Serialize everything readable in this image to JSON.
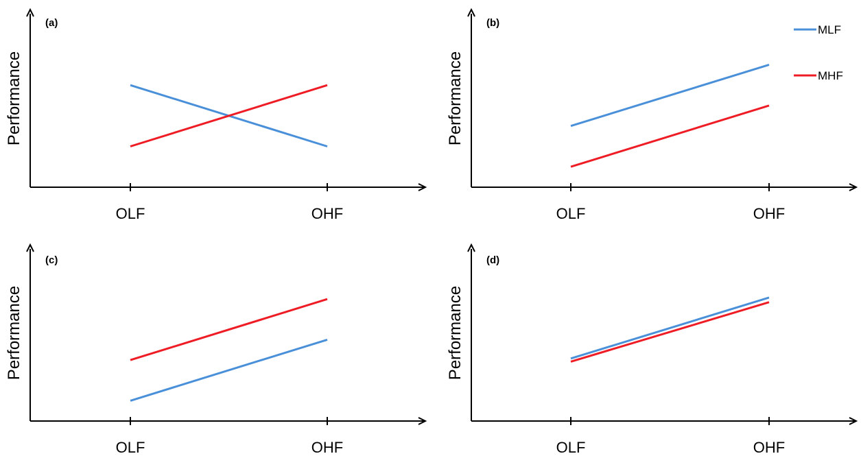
{
  "chart_data": [
    {
      "panel": "(a)",
      "type": "line",
      "categories": [
        "OLF",
        "OHF"
      ],
      "ylabel": "Performance",
      "ylim": [
        0,
        1
      ],
      "series": [
        {
          "name": "MLF",
          "color": "#4a90d9",
          "values": [
            0.65,
            0.26
          ]
        },
        {
          "name": "MHF",
          "color": "#ee1c25",
          "values": [
            0.26,
            0.65
          ]
        }
      ]
    },
    {
      "panel": "(b)",
      "type": "line",
      "categories": [
        "OLF",
        "OHF"
      ],
      "ylabel": "Performance",
      "ylim": [
        0,
        1
      ],
      "series": [
        {
          "name": "MLF",
          "color": "#4a90d9",
          "values": [
            0.39,
            0.78
          ]
        },
        {
          "name": "MHF",
          "color": "#ee1c25",
          "values": [
            0.13,
            0.52
          ]
        }
      ]
    },
    {
      "panel": "(c)",
      "type": "line",
      "categories": [
        "OLF",
        "OHF"
      ],
      "ylabel": "Performance",
      "ylim": [
        0,
        1
      ],
      "series": [
        {
          "name": "MLF",
          "color": "#4a90d9",
          "values": [
            0.13,
            0.52
          ]
        },
        {
          "name": "MHF",
          "color": "#ee1c25",
          "values": [
            0.39,
            0.78
          ]
        }
      ]
    },
    {
      "panel": "(d)",
      "type": "line",
      "categories": [
        "OLF",
        "OHF"
      ],
      "ylabel": "Performance",
      "ylim": [
        0,
        1
      ],
      "series": [
        {
          "name": "MLF",
          "color": "#4a90d9",
          "values": [
            0.4,
            0.79
          ]
        },
        {
          "name": "MHF",
          "color": "#ee1c25",
          "values": [
            0.38,
            0.76
          ]
        }
      ]
    }
  ],
  "legend": {
    "placement": "top-right",
    "items": [
      {
        "name": "MLF",
        "color": "#4a90d9"
      },
      {
        "name": "MHF",
        "color": "#ee1c25"
      }
    ]
  }
}
